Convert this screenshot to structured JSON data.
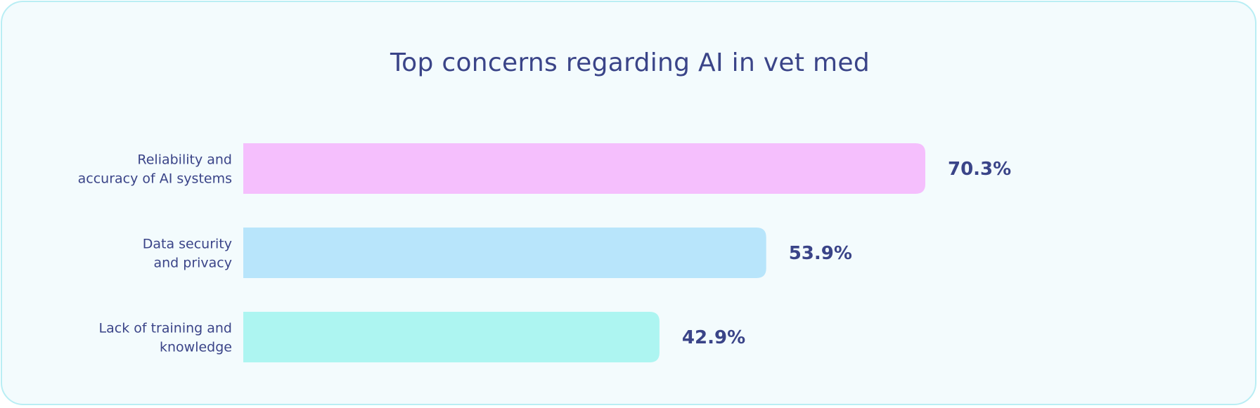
{
  "chart_data": {
    "type": "bar",
    "orientation": "horizontal",
    "title": "Top concerns regarding AI in vet med",
    "categories": [
      [
        "Reliability and",
        "accuracy of AI systems"
      ],
      [
        "Data security",
        "and privacy"
      ],
      [
        "Lack of training and",
        "knowledge"
      ]
    ],
    "values": [
      70.3,
      53.9,
      42.9
    ],
    "value_labels": [
      "70.3%",
      "53.9%",
      "42.9%"
    ],
    "colors": [
      "#f5bffd",
      "#b8e5fb",
      "#adf5f1"
    ],
    "xlim": [
      0,
      100
    ],
    "grid": false,
    "legend": "none"
  }
}
